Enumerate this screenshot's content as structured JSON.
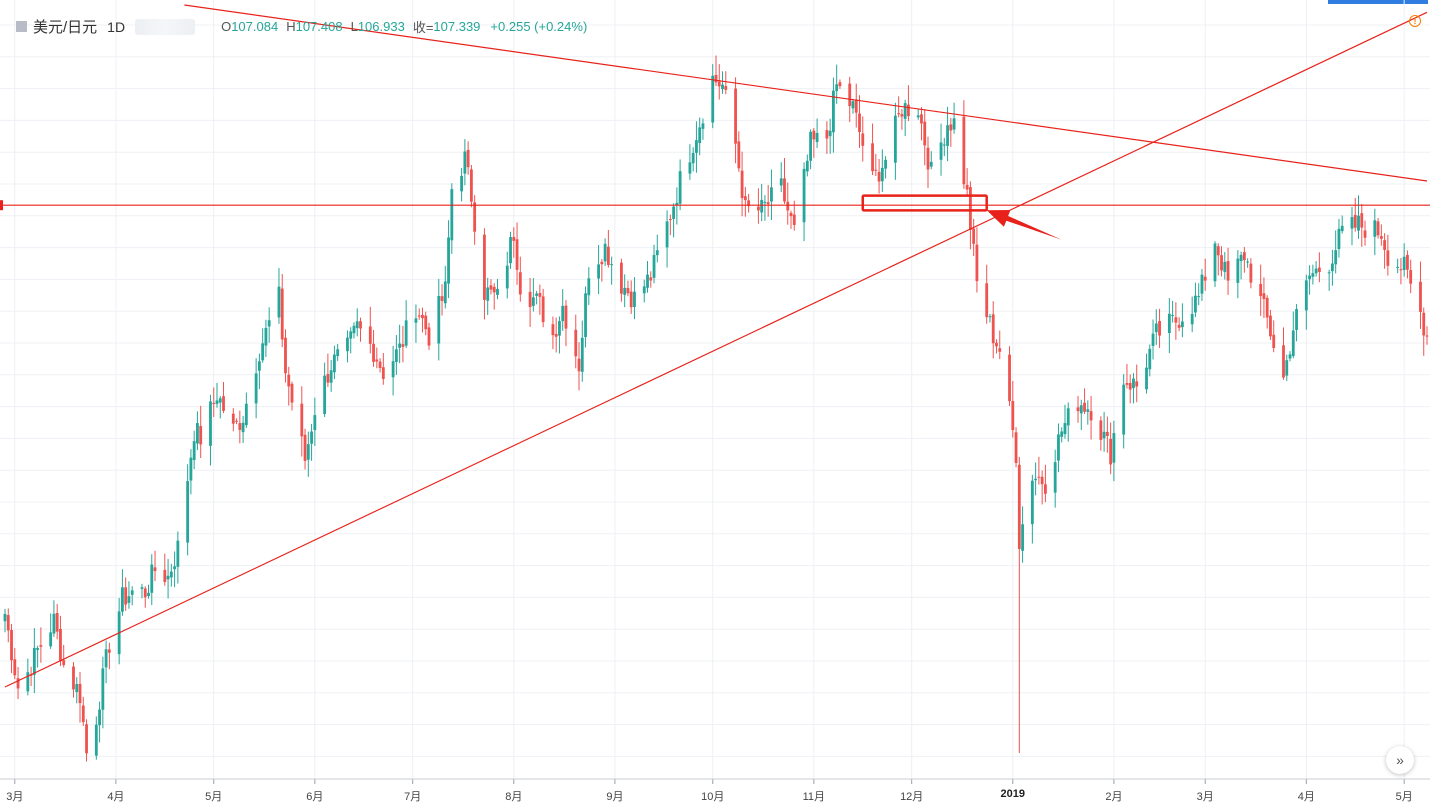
{
  "legend": {
    "symbol": "美元/日元",
    "interval": "1D",
    "o_label": "O",
    "o_value": "107.084",
    "h_label": "H",
    "h_value": "107.408",
    "l_label": "L",
    "l_value": "106.933",
    "c_label": "收=",
    "c_value": "107.339",
    "change": "+0.255 (+0.24%)"
  },
  "colors": {
    "up": "#26a69a",
    "down": "#ef5350",
    "drawing": "#e8221a",
    "grid": "#edf0f4"
  },
  "icons": {
    "symbol": "symbol-square-icon",
    "goto": "double-chevron-right-icon",
    "alert": "alert-circle-icon"
  },
  "chart_data": {
    "type": "candlestick",
    "x_ticks": [
      "3月",
      "4月",
      "5月",
      "6月",
      "7月",
      "8月",
      "9月",
      "10月",
      "11月",
      "12月",
      "2019",
      "2月",
      "3月",
      "4月",
      "5月"
    ],
    "x_range": [
      "2018-02-26",
      "2019-05-08"
    ],
    "y_range": [
      104.5,
      115.0
    ],
    "grid": true,
    "anchors": [
      [
        "2018-02-26",
        106.7
      ],
      [
        "2018-03-02",
        105.7
      ],
      [
        "2018-03-05",
        105.9
      ],
      [
        "2018-03-08",
        106.2
      ],
      [
        "2018-03-13",
        106.6
      ],
      [
        "2018-03-16",
        106.0
      ],
      [
        "2018-03-21",
        105.6
      ],
      [
        "2018-03-23",
        104.8
      ],
      [
        "2018-03-26",
        105.3
      ],
      [
        "2018-03-30",
        106.3
      ],
      [
        "2018-04-03",
        106.9
      ],
      [
        "2018-04-06",
        107.0
      ],
      [
        "2018-04-10",
        107.0
      ],
      [
        "2018-04-13",
        107.3
      ],
      [
        "2018-04-17",
        107.2
      ],
      [
        "2018-04-20",
        107.6
      ],
      [
        "2018-04-25",
        109.2
      ],
      [
        "2018-04-27",
        109.1
      ],
      [
        "2018-05-02",
        109.7
      ],
      [
        "2018-05-07",
        109.2
      ],
      [
        "2018-05-10",
        109.4
      ],
      [
        "2018-05-15",
        110.3
      ],
      [
        "2018-05-21",
        111.0
      ],
      [
        "2018-05-23",
        110.0
      ],
      [
        "2018-05-29",
        108.8
      ],
      [
        "2018-06-01",
        109.5
      ],
      [
        "2018-06-06",
        110.1
      ],
      [
        "2018-06-11",
        110.3
      ],
      [
        "2018-06-14",
        110.6
      ],
      [
        "2018-06-19",
        110.3
      ],
      [
        "2018-06-22",
        110.0
      ],
      [
        "2018-06-27",
        110.3
      ],
      [
        "2018-07-02",
        110.9
      ],
      [
        "2018-07-06",
        110.5
      ],
      [
        "2018-07-11",
        111.1
      ],
      [
        "2018-07-13",
        112.5
      ],
      [
        "2018-07-17",
        112.9
      ],
      [
        "2018-07-19",
        112.4
      ],
      [
        "2018-07-23",
        111.1
      ],
      [
        "2018-07-27",
        111.0
      ],
      [
        "2018-08-01",
        111.9
      ],
      [
        "2018-08-03",
        111.2
      ],
      [
        "2018-08-09",
        110.9
      ],
      [
        "2018-08-13",
        110.5
      ],
      [
        "2018-08-16",
        110.9
      ],
      [
        "2018-08-21",
        110.1
      ],
      [
        "2018-08-24",
        111.4
      ],
      [
        "2018-08-29",
        111.7
      ],
      [
        "2018-09-03",
        111.2
      ],
      [
        "2018-09-07",
        111.0
      ],
      [
        "2018-09-12",
        111.3
      ],
      [
        "2018-09-17",
        112.0
      ],
      [
        "2018-09-21",
        112.6
      ],
      [
        "2018-09-27",
        113.4
      ],
      [
        "2018-10-01",
        114.0
      ],
      [
        "2018-10-04",
        113.9
      ],
      [
        "2018-10-08",
        113.1
      ],
      [
        "2018-10-11",
        112.2
      ],
      [
        "2018-10-16",
        112.2
      ],
      [
        "2018-10-22",
        112.5
      ],
      [
        "2018-10-26",
        111.9
      ],
      [
        "2018-10-31",
        113.1
      ],
      [
        "2018-11-05",
        113.2
      ],
      [
        "2018-11-08",
        113.9
      ],
      [
        "2018-11-13",
        113.6
      ],
      [
        "2018-11-19",
        112.6
      ],
      [
        "2018-11-23",
        112.9
      ],
      [
        "2018-11-28",
        113.6
      ],
      [
        "2018-12-03",
        113.6
      ],
      [
        "2018-12-07",
        112.7
      ],
      [
        "2018-12-12",
        113.4
      ],
      [
        "2018-12-14",
        113.4
      ],
      [
        "2018-12-18",
        112.4
      ],
      [
        "2018-12-21",
        111.2
      ],
      [
        "2018-12-26",
        110.5
      ],
      [
        "2018-12-28",
        110.3
      ],
      [
        "2019-01-02",
        108.9
      ],
      [
        "2019-01-03",
        107.7
      ],
      [
        "2019-01-07",
        108.6
      ],
      [
        "2019-01-11",
        108.5
      ],
      [
        "2019-01-16",
        109.2
      ],
      [
        "2019-01-21",
        109.6
      ],
      [
        "2019-01-25",
        109.5
      ],
      [
        "2019-01-31",
        108.9
      ],
      [
        "2019-02-04",
        109.9
      ],
      [
        "2019-02-08",
        109.8
      ],
      [
        "2019-02-14",
        110.5
      ],
      [
        "2019-02-20",
        110.7
      ],
      [
        "2019-02-27",
        111.0
      ],
      [
        "2019-03-04",
        111.8
      ],
      [
        "2019-03-08",
        111.2
      ],
      [
        "2019-03-13",
        111.6
      ],
      [
        "2019-03-20",
        110.7
      ],
      [
        "2019-03-25",
        109.9
      ],
      [
        "2019-03-28",
        110.6
      ],
      [
        "2019-04-02",
        111.3
      ],
      [
        "2019-04-08",
        111.5
      ],
      [
        "2019-04-12",
        111.9
      ],
      [
        "2019-04-17",
        112.0
      ],
      [
        "2019-04-24",
        111.9
      ],
      [
        "2019-04-26",
        111.6
      ],
      [
        "2019-05-01",
        111.4
      ],
      [
        "2019-05-06",
        110.8
      ],
      [
        "2019-05-08",
        110.5
      ]
    ],
    "lines": [
      {
        "name": "horizontal-support",
        "y": 112.27
      },
      {
        "name": "descending-resistance",
        "from": [
          "2018-04-22",
          115.0
        ],
        "to": [
          "2019-05-08",
          112.6
        ]
      },
      {
        "name": "ascending-support",
        "from": [
          "2018-02-26",
          105.7
        ],
        "to": [
          "2019-05-08",
          114.9
        ]
      }
    ],
    "box": {
      "from": [
        "2018-11-16",
        112.4
      ],
      "to": [
        "2018-12-24",
        112.2
      ]
    },
    "arrow": {
      "from": [
        "2019-01-16",
        111.8
      ],
      "to": [
        "2018-12-24",
        112.2
      ]
    }
  }
}
